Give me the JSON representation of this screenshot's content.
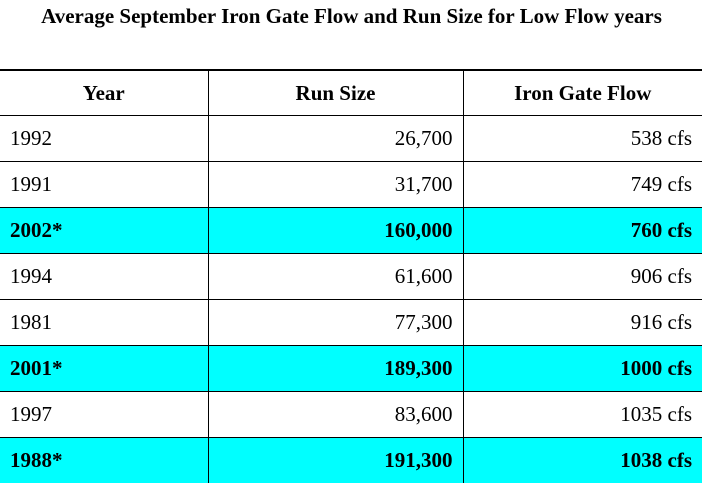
{
  "title": "Average September Iron Gate Flow and Run Size for Low Flow years",
  "columns": [
    "Year",
    "Run Size",
    "Iron Gate Flow"
  ],
  "highlight_color": "#00ffff",
  "rows": [
    {
      "year": "1992",
      "run_size": "26,700",
      "flow": "538 cfs",
      "highlighted": false
    },
    {
      "year": "1991",
      "run_size": "31,700",
      "flow": "749 cfs",
      "highlighted": false
    },
    {
      "year": "2002*",
      "run_size": "160,000",
      "flow": "760 cfs",
      "highlighted": true
    },
    {
      "year": "1994",
      "run_size": "61,600",
      "flow": "906 cfs",
      "highlighted": false
    },
    {
      "year": "1981",
      "run_size": "77,300",
      "flow": "916 cfs",
      "highlighted": false
    },
    {
      "year": "2001*",
      "run_size": "189,300",
      "flow": "1000 cfs",
      "highlighted": true
    },
    {
      "year": "1997",
      "run_size": "83,600",
      "flow": "1035 cfs",
      "highlighted": false
    },
    {
      "year": "1988*",
      "run_size": "191,300",
      "flow": "1038 cfs",
      "highlighted": true
    }
  ]
}
